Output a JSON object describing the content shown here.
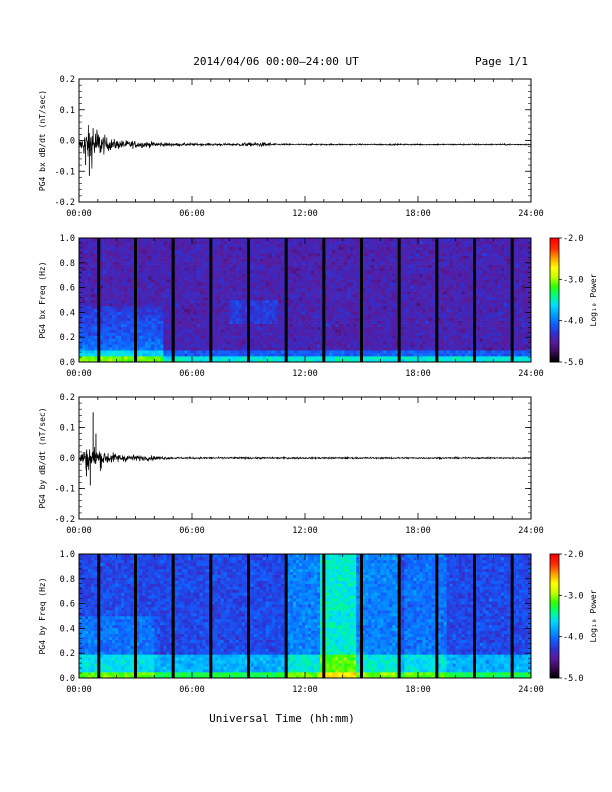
{
  "header": {
    "title": "2014/04/06  00:00–24:00 UT",
    "page": "Page 1/1"
  },
  "footer": {
    "xlabel": "Universal Time (hh:mm)"
  },
  "colors": {
    "trace": "#000000",
    "gap": "#000000",
    "colormap": [
      "#000000",
      "#3a0a55",
      "#5a1a9a",
      "#3030d0",
      "#1060ff",
      "#00a0ff",
      "#00dcff",
      "#00ff80",
      "#30ff00",
      "#c8ff00",
      "#ffff00",
      "#ffa000",
      "#ff3000",
      "#ff0000"
    ]
  },
  "chart_data": [
    {
      "type": "line",
      "panel": "bx-waveform",
      "ylabel": "PG4 bx dB/dt (nT/sec)",
      "xlim": [
        0,
        24
      ],
      "ylim": [
        -0.2,
        0.2
      ],
      "xticks": [
        "00:00",
        "06:00",
        "12:00",
        "18:00",
        "24:00"
      ],
      "yticks": [
        "0.2",
        "0.1",
        "0.0",
        "-0.1",
        "-0.2"
      ],
      "baseline": -0.013,
      "envelope": {
        "hours": [
          0,
          0.3,
          0.6,
          1.0,
          1.5,
          2.0,
          3.0,
          4.0,
          5.0,
          8.0,
          9.5,
          10.0,
          10.5,
          12.0,
          24.0
        ],
        "amplitude": [
          0.01,
          0.06,
          0.09,
          0.07,
          0.03,
          0.022,
          0.016,
          0.012,
          0.006,
          0.005,
          0.01,
          0.009,
          0.004,
          0.003,
          0.003
        ]
      },
      "spikes": [
        {
          "hour": 0.55,
          "value": -0.115
        },
        {
          "hour": 0.75,
          "value": 0.04
        },
        {
          "hour": 0.95,
          "value": 0.035
        },
        {
          "hour": 0.35,
          "value": -0.08
        }
      ]
    },
    {
      "type": "heatmap",
      "panel": "bx-spectrogram",
      "ylabel": "PG4 bx Freq (Hz)",
      "xlim": [
        0,
        24
      ],
      "ylim": [
        0,
        1.0
      ],
      "xticks": [
        "00:00",
        "06:00",
        "12:00",
        "18:00",
        "24:00"
      ],
      "yticks": [
        "1.0",
        "0.8",
        "0.6",
        "0.4",
        "0.2",
        "0.0"
      ],
      "gaps_hours": [
        1.05,
        3.0,
        5.0,
        7.0,
        9.0,
        11.0,
        13.0,
        15.0,
        17.0,
        19.0,
        21.0,
        23.0
      ],
      "colorbar": {
        "label": "Log₁₀ Power",
        "ticks": [
          "-2.0",
          "-3.0",
          "-4.0",
          "-5.0"
        ],
        "range": [
          -5.0,
          -2.0
        ]
      }
    },
    {
      "type": "line",
      "panel": "by-waveform",
      "ylabel": "PG4 by dB/dt (nT/sec)",
      "xlim": [
        0,
        24
      ],
      "ylim": [
        -0.2,
        0.2
      ],
      "xticks": [
        "00:00",
        "06:00",
        "12:00",
        "18:00",
        "24:00"
      ],
      "yticks": [
        "0.2",
        "0.1",
        "0.0",
        "-0.1",
        "-0.2"
      ],
      "baseline": 0.0,
      "envelope": {
        "hours": [
          0,
          0.3,
          0.6,
          1.0,
          1.5,
          2.0,
          3.0,
          4.0,
          5.0,
          24.0
        ],
        "amplitude": [
          0.01,
          0.05,
          0.06,
          0.05,
          0.03,
          0.02,
          0.014,
          0.01,
          0.004,
          0.003
        ]
      },
      "spikes": [
        {
          "hour": 0.75,
          "value": 0.15
        },
        {
          "hour": 0.6,
          "value": -0.09
        },
        {
          "hour": 0.9,
          "value": 0.08
        },
        {
          "hour": 0.4,
          "value": -0.06
        }
      ]
    },
    {
      "type": "heatmap",
      "panel": "by-spectrogram",
      "ylabel": "PG4 by Freq (Hz)",
      "xlim": [
        0,
        24
      ],
      "ylim": [
        0,
        1.0
      ],
      "xticks": [
        "00:00",
        "06:00",
        "12:00",
        "18:00",
        "24:00"
      ],
      "yticks": [
        "1.0",
        "0.8",
        "0.6",
        "0.4",
        "0.2",
        "0.0"
      ],
      "gaps_hours": [
        1.05,
        3.0,
        5.0,
        7.0,
        9.0,
        11.0,
        13.0,
        15.0,
        17.0,
        19.0,
        21.0,
        23.0
      ],
      "colorbar": {
        "label": "Log₁₀ Power",
        "ticks": [
          "-2.0",
          "-3.0",
          "-4.0",
          "-5.0"
        ],
        "range": [
          -5.0,
          -2.0
        ]
      }
    }
  ]
}
